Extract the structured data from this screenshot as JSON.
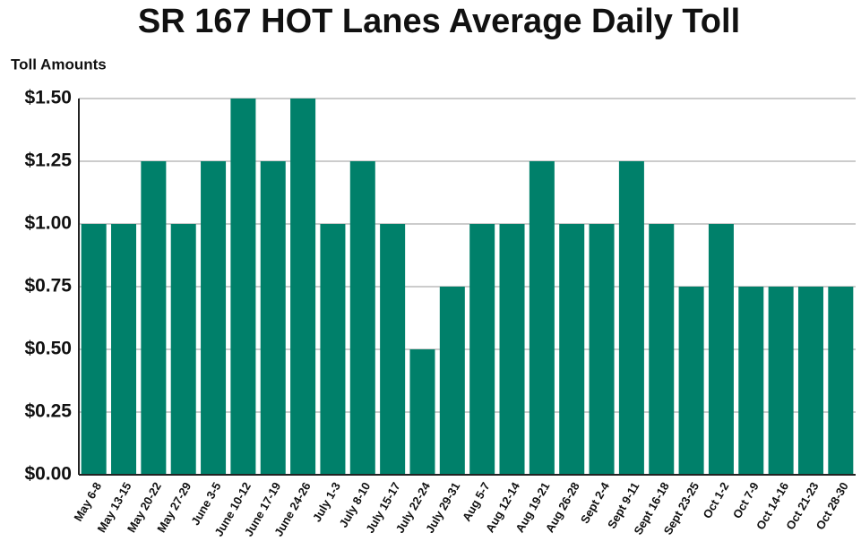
{
  "chart_data": {
    "type": "bar",
    "title": "SR 167 HOT Lanes Average Daily Toll",
    "y_label": "Toll Amounts",
    "categories": [
      "May 6-8",
      "May 13-15",
      "May 20-22",
      "May 27-29",
      "June 3-5",
      "June 10-12",
      "June 17-19",
      "June 24-26",
      "July 1-3",
      "July 8-10",
      "July 15-17",
      "July 22-24",
      "July 29-31",
      "Aug 5-7",
      "Aug 12-14",
      "Aug 19-21",
      "Aug 26-28",
      "Sept 2-4",
      "Sept 9-11",
      "Sept 16-18",
      "Sept 23-25",
      "Oct 1-2",
      "Oct 7-9",
      "Oct 14-16",
      "Oct 21-23",
      "Oct 28-30"
    ],
    "values": [
      1.0,
      1.0,
      1.25,
      1.0,
      1.25,
      1.5,
      1.25,
      1.5,
      1.0,
      1.25,
      1.0,
      0.5,
      0.75,
      1.0,
      1.0,
      1.25,
      1.0,
      1.0,
      1.25,
      1.0,
      0.75,
      1.0,
      0.75,
      0.75,
      0.75,
      0.75
    ],
    "color": "#00806a",
    "ylim": [
      0,
      1.5
    ],
    "yticks": [
      {
        "value": 0,
        "label": "$0.00"
      },
      {
        "value": 0.25,
        "label": "$0.25"
      },
      {
        "value": 0.5,
        "label": "$0.50"
      },
      {
        "value": 0.75,
        "label": "$0.75"
      },
      {
        "value": 1.0,
        "label": "$1.00"
      },
      {
        "value": 1.25,
        "label": "$1.25"
      },
      {
        "value": 1.5,
        "label": "$1.50"
      }
    ],
    "grid": true
  }
}
